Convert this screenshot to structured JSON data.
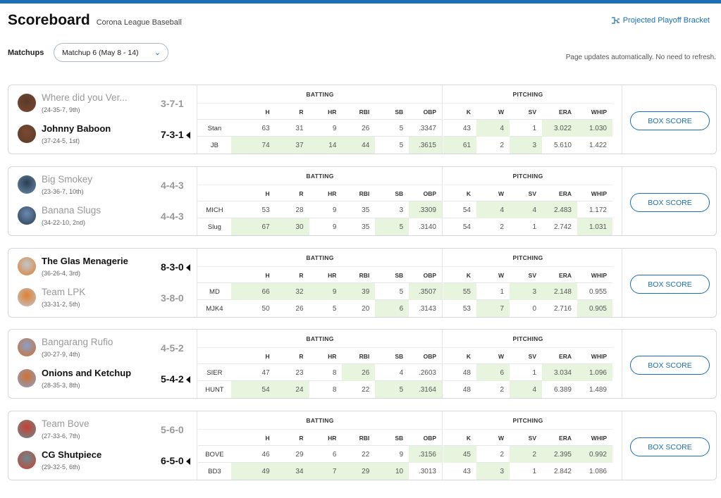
{
  "page": {
    "title": "Scoreboard",
    "league": "Corona League Baseball",
    "bracket_link": "Projected Playoff Bracket",
    "matchups_label": "Matchups",
    "matchup_selected": "Matchup 6 (May 8 - 14)",
    "auto_update": "Page updates automatically. No need to refresh."
  },
  "batting_label": "BATTING",
  "pitching_label": "PITCHING",
  "box_score_label": "BOX SCORE",
  "bat_headers": [
    "H",
    "R",
    "HR",
    "RBI",
    "SB",
    "OBP"
  ],
  "pit_headers": [
    "K",
    "W",
    "SV",
    "ERA",
    "WHIP"
  ],
  "matchups": [
    {
      "teams": [
        {
          "name": "Where did you Ver...",
          "record": "(24-35-7, 9th)",
          "score": "3-7-1",
          "winner": false,
          "abbr": "Stan",
          "bat": [
            "63",
            "31",
            "9",
            "26",
            "5",
            ".3347"
          ],
          "pit": [
            "43",
            "4",
            "1",
            "3.022",
            "1.030"
          ],
          "batHi": [
            0,
            0,
            0,
            0,
            0,
            0
          ],
          "pitHi": [
            0,
            1,
            0,
            1,
            1
          ]
        },
        {
          "name": "Johnny Baboon",
          "record": "(37-24-5, 1st)",
          "score": "7-3-1",
          "winner": true,
          "abbr": "JB",
          "bat": [
            "74",
            "37",
            "14",
            "44",
            "5",
            ".3615"
          ],
          "pit": [
            "61",
            "2",
            "3",
            "5.610",
            "1.422"
          ],
          "batHi": [
            1,
            1,
            1,
            1,
            0,
            1
          ],
          "pitHi": [
            1,
            0,
            1,
            0,
            0
          ]
        }
      ]
    },
    {
      "teams": [
        {
          "name": "Big Smokey",
          "record": "(23-36-7, 10th)",
          "score": "4-4-3",
          "winner": false,
          "abbr": "MICH",
          "bat": [
            "53",
            "28",
            "9",
            "35",
            "3",
            ".3309"
          ],
          "pit": [
            "54",
            "4",
            "4",
            "2.483",
            "1.172"
          ],
          "batHi": [
            0,
            0,
            0,
            0,
            0,
            1
          ],
          "pitHi": [
            0,
            1,
            1,
            1,
            0
          ]
        },
        {
          "name": "Banana Slugs",
          "record": "(34-22-10, 2nd)",
          "score": "4-4-3",
          "winner": false,
          "abbr": "Slug",
          "bat": [
            "67",
            "30",
            "9",
            "35",
            "5",
            ".3140"
          ],
          "pit": [
            "54",
            "2",
            "1",
            "2.742",
            "1.031"
          ],
          "batHi": [
            1,
            1,
            0,
            0,
            1,
            0
          ],
          "pitHi": [
            0,
            0,
            0,
            0,
            1
          ]
        }
      ]
    },
    {
      "teams": [
        {
          "name": "The Glas Menagerie",
          "record": "(36-26-4, 3rd)",
          "score": "8-3-0",
          "winner": true,
          "abbr": "MD",
          "bat": [
            "66",
            "32",
            "9",
            "39",
            "5",
            ".3507"
          ],
          "pit": [
            "55",
            "1",
            "3",
            "2.148",
            "0.955"
          ],
          "batHi": [
            1,
            1,
            1,
            1,
            0,
            1
          ],
          "pitHi": [
            1,
            0,
            1,
            1,
            0
          ]
        },
        {
          "name": "Team LPK",
          "record": "(33-31-2, 5th)",
          "score": "3-8-0",
          "winner": false,
          "abbr": "MJK4",
          "bat": [
            "50",
            "26",
            "5",
            "20",
            "6",
            ".3143"
          ],
          "pit": [
            "53",
            "7",
            "0",
            "2.716",
            "0.905"
          ],
          "batHi": [
            0,
            0,
            0,
            0,
            1,
            0
          ],
          "pitHi": [
            0,
            1,
            0,
            0,
            1
          ]
        }
      ]
    },
    {
      "teams": [
        {
          "name": "Bangarang Rufio",
          "record": "(30-27-9, 4th)",
          "score": "4-5-2",
          "winner": false,
          "abbr": "SIER",
          "bat": [
            "47",
            "23",
            "8",
            "26",
            "4",
            ".2603"
          ],
          "pit": [
            "48",
            "6",
            "1",
            "3.034",
            "1.096"
          ],
          "batHi": [
            0,
            0,
            0,
            1,
            0,
            0
          ],
          "pitHi": [
            0,
            1,
            0,
            1,
            1
          ]
        },
        {
          "name": "Onions and Ketchup",
          "record": "(28-35-3, 8th)",
          "score": "5-4-2",
          "winner": true,
          "abbr": "HUNT",
          "bat": [
            "54",
            "24",
            "8",
            "22",
            "5",
            ".3164"
          ],
          "pit": [
            "48",
            "2",
            "4",
            "6.389",
            "1.489"
          ],
          "batHi": [
            1,
            1,
            0,
            0,
            1,
            1
          ],
          "pitHi": [
            0,
            0,
            1,
            0,
            0
          ]
        }
      ]
    },
    {
      "teams": [
        {
          "name": "Team Bove",
          "record": "(27-33-6, 7th)",
          "score": "5-6-0",
          "winner": false,
          "abbr": "BOVE",
          "bat": [
            "46",
            "29",
            "6",
            "22",
            "9",
            ".3156"
          ],
          "pit": [
            "45",
            "2",
            "2",
            "2.395",
            "0.992"
          ],
          "batHi": [
            0,
            0,
            0,
            0,
            0,
            1
          ],
          "pitHi": [
            1,
            0,
            1,
            1,
            1
          ]
        },
        {
          "name": "CG Shutpiece",
          "record": "(29-32-5, 6th)",
          "score": "6-5-0",
          "winner": true,
          "abbr": "BD3",
          "bat": [
            "49",
            "34",
            "7",
            "29",
            "10",
            ".3013"
          ],
          "pit": [
            "43",
            "3",
            "1",
            "2.842",
            "1.086"
          ],
          "batHi": [
            1,
            1,
            1,
            1,
            1,
            0
          ],
          "pitHi": [
            0,
            1,
            0,
            0,
            0
          ]
        }
      ]
    }
  ]
}
